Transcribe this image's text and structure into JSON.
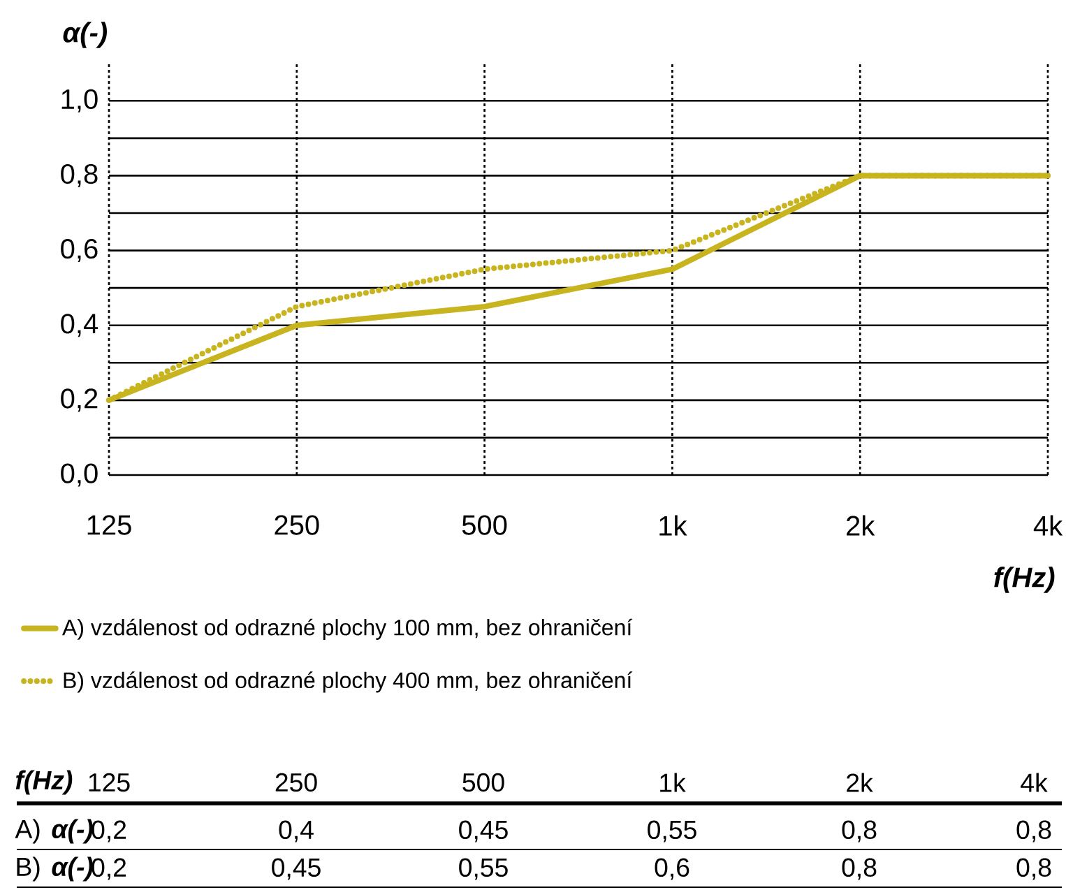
{
  "chart_data": {
    "type": "line",
    "xlabel": "f(Hz)",
    "ylabel": "α(-)",
    "categories": [
      "125",
      "250",
      "500",
      "1k",
      "2k",
      "4k"
    ],
    "ylim": [
      0,
      1.1
    ],
    "yticks": [
      {
        "value": 0,
        "label": "0,0"
      },
      {
        "value": 0.1,
        "label": null
      },
      {
        "value": 0.2,
        "label": "0,2"
      },
      {
        "value": 0.3,
        "label": null
      },
      {
        "value": 0.4,
        "label": "0,4"
      },
      {
        "value": 0.5,
        "label": null
      },
      {
        "value": 0.6,
        "label": "0,6"
      },
      {
        "value": 0.7,
        "label": null
      },
      {
        "value": 0.8,
        "label": "0,8"
      },
      {
        "value": 0.9,
        "label": null
      },
      {
        "value": 1.0,
        "label": "1,0"
      }
    ],
    "grid": true,
    "legend": "bottom",
    "series": [
      {
        "name": "A) vzdálenost od odrazné plochy 100 mm, bez ohraničení",
        "color": "#c8b41e",
        "line_style": "solid",
        "values": [
          0.2,
          0.4,
          0.45,
          0.55,
          0.8,
          0.8
        ],
        "value_labels": [
          "0,2",
          "0,4",
          "0,45",
          "0,55",
          "0,8",
          "0,8"
        ]
      },
      {
        "name": "B) vzdálenost od odrazné plochy 400 mm, bez ohraničení",
        "color": "#c8b41e",
        "line_style": "dotted",
        "values": [
          0.2,
          0.45,
          0.55,
          0.6,
          0.8,
          0.8
        ],
        "value_labels": [
          "0,2",
          "0,45",
          "0,55",
          "0,6",
          "0,8",
          "0,8"
        ]
      }
    ],
    "annotations": [
      "A)",
      "B)"
    ]
  }
}
